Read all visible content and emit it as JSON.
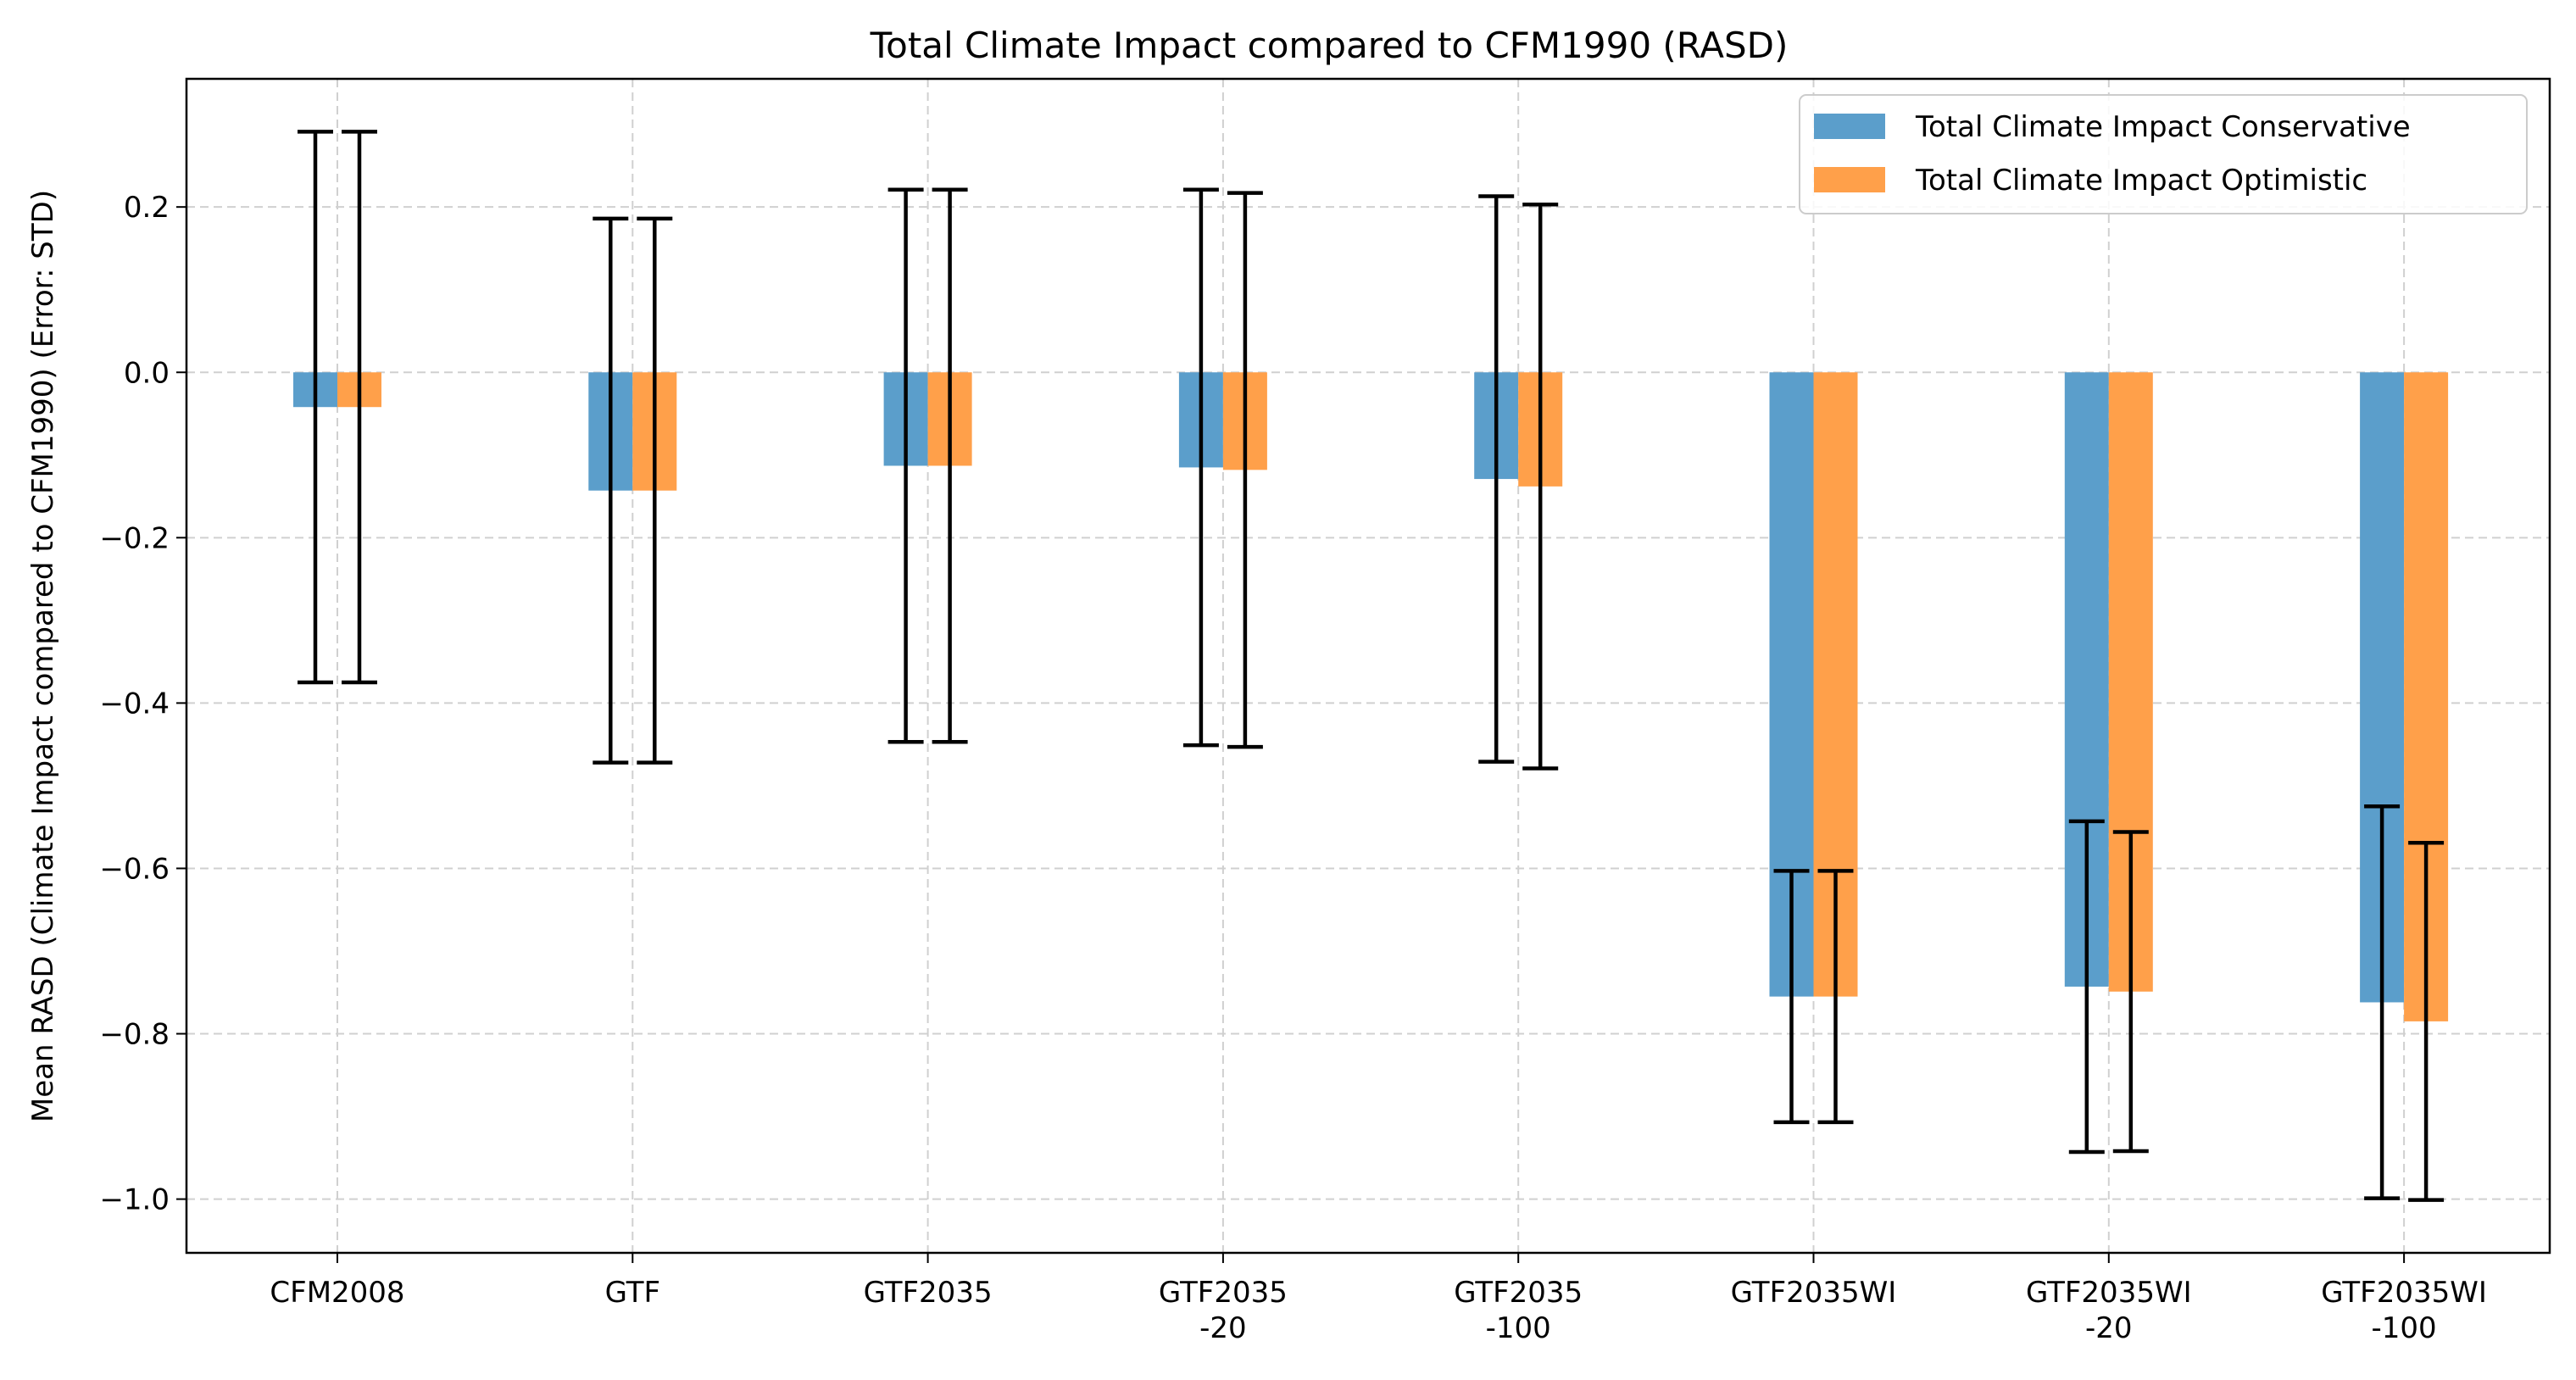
{
  "chart_data": {
    "type": "bar",
    "title": "Total Climate Impact compared to CFM1990 (RASD)",
    "xlabel": "",
    "ylabel": "Mean RASD (Climate Impact compared to CFM1990) (Error: STD)",
    "ylim": [
      -1.065,
      0.355
    ],
    "yticks": [
      -1.0,
      -0.8,
      -0.6,
      -0.4,
      -0.2,
      0.0,
      0.2
    ],
    "ytick_labels": [
      "−1.0",
      "−0.8",
      "−0.6",
      "−0.4",
      "−0.2",
      "0.0",
      "0.2"
    ],
    "grid": true,
    "legend_position": "top-right",
    "categories": [
      [
        "CFM2008"
      ],
      [
        "GTF"
      ],
      [
        "GTF2035"
      ],
      [
        "GTF2035",
        "-20"
      ],
      [
        "GTF2035",
        "-100"
      ],
      [
        "GTF2035WI"
      ],
      [
        "GTF2035WI",
        "-20"
      ],
      [
        "GTF2035WI",
        "-100"
      ]
    ],
    "series": [
      {
        "name": "Total Climate Impact Conservative",
        "color": "#5b9ecb",
        "values": [
          -0.042,
          -0.143,
          -0.113,
          -0.115,
          -0.129,
          -0.755,
          -0.743,
          -0.762
        ],
        "error": [
          0.333,
          0.329,
          0.334,
          0.336,
          0.342,
          0.152,
          0.2,
          0.237
        ]
      },
      {
        "name": "Total Climate Impact Optimistic",
        "color": "#ffa04a",
        "values": [
          -0.042,
          -0.143,
          -0.113,
          -0.118,
          -0.138,
          -0.755,
          -0.749,
          -0.785
        ],
        "error": [
          0.333,
          0.329,
          0.334,
          0.335,
          0.341,
          0.152,
          0.193,
          0.216
        ]
      }
    ]
  }
}
